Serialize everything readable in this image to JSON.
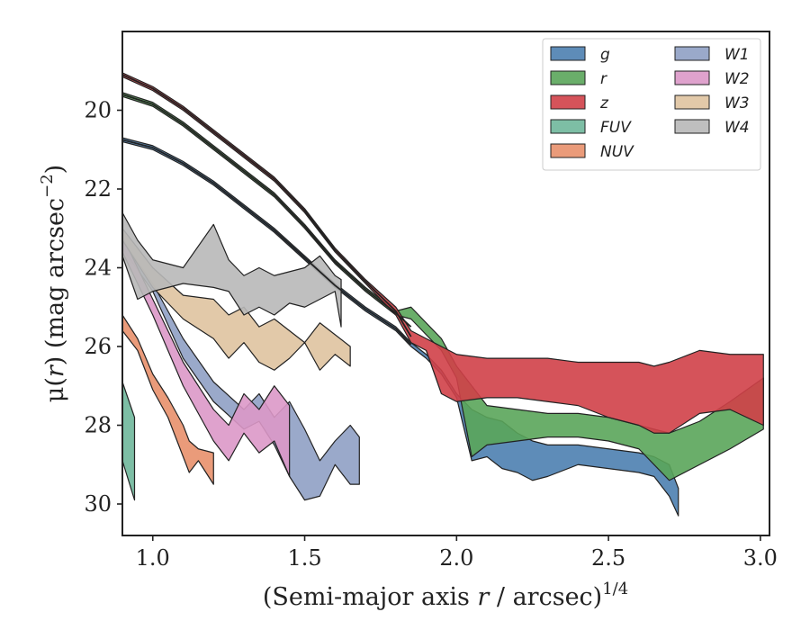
{
  "chart_data": {
    "type": "area",
    "xlabel_main": "(Semi-major axis ",
    "xlabel_var": "r",
    "xlabel_rest": " / arcsec)",
    "xlabel_sup": "1/4",
    "ylabel_main": "μ(",
    "ylabel_var": "r",
    "ylabel_rest": ") (mag arcsec",
    "ylabel_sup": "−2",
    "ylabel_close": ")",
    "xlim": [
      0.9,
      3.03
    ],
    "ylim": [
      30.8,
      18.0
    ],
    "xticks": [
      1.0,
      1.5,
      2.0,
      2.5,
      3.0
    ],
    "xtick_labels": [
      "1.0",
      "1.5",
      "2.0",
      "2.5",
      "3.0"
    ],
    "yticks": [
      20,
      22,
      24,
      26,
      28,
      30
    ],
    "ytick_labels": [
      "20",
      "22",
      "24",
      "26",
      "28",
      "30"
    ],
    "legend_position": "top-right",
    "legend_columns": 2,
    "series": [
      {
        "name": "g",
        "color": "#4c7fb0",
        "x": [
          0.9,
          1.0,
          1.1,
          1.2,
          1.3,
          1.4,
          1.5,
          1.6,
          1.7,
          1.8,
          1.85,
          1.9,
          1.95,
          2.0,
          2.05,
          2.1,
          2.15,
          2.2,
          2.25,
          2.3,
          2.4,
          2.5,
          2.6,
          2.65,
          2.7,
          2.73
        ],
        "y_upper": [
          20.7,
          20.9,
          21.3,
          21.8,
          22.4,
          23.0,
          23.7,
          24.4,
          25.0,
          25.5,
          25.9,
          26.2,
          26.6,
          27.2,
          27.6,
          27.8,
          27.9,
          28.2,
          28.4,
          28.5,
          28.5,
          28.6,
          28.7,
          28.8,
          29.0,
          29.6
        ],
        "y_lower": [
          20.8,
          21.0,
          21.4,
          21.9,
          22.5,
          23.1,
          23.8,
          24.5,
          25.1,
          25.6,
          26.0,
          26.3,
          26.7,
          27.3,
          28.9,
          28.8,
          29.1,
          29.2,
          29.4,
          29.3,
          29.0,
          29.1,
          29.2,
          29.3,
          29.8,
          30.3
        ]
      },
      {
        "name": "r",
        "color": "#5aa55a",
        "x": [
          0.9,
          1.0,
          1.1,
          1.2,
          1.3,
          1.4,
          1.5,
          1.6,
          1.7,
          1.8,
          1.85,
          1.9,
          1.95,
          2.0,
          2.05,
          2.1,
          2.2,
          2.3,
          2.4,
          2.5,
          2.6,
          2.7,
          2.8,
          2.9,
          3.01
        ],
        "y_upper": [
          19.55,
          19.8,
          20.3,
          20.9,
          21.5,
          22.1,
          22.9,
          23.8,
          24.5,
          25.1,
          25.0,
          25.4,
          25.8,
          26.5,
          27.0,
          27.5,
          27.6,
          27.7,
          27.7,
          27.8,
          28.0,
          28.2,
          27.9,
          27.4,
          26.8
        ],
        "y_lower": [
          19.65,
          19.9,
          20.4,
          21.0,
          21.6,
          22.2,
          23.0,
          23.9,
          24.6,
          25.2,
          25.3,
          25.7,
          26.1,
          26.8,
          28.8,
          28.5,
          28.4,
          28.3,
          28.3,
          28.4,
          28.6,
          29.4,
          29.0,
          28.6,
          28.1
        ]
      },
      {
        "name": "z",
        "color": "#d04048",
        "x": [
          0.9,
          1.0,
          1.1,
          1.2,
          1.3,
          1.4,
          1.5,
          1.6,
          1.7,
          1.8,
          1.85,
          1.9,
          1.95,
          2.0,
          2.1,
          2.2,
          2.3,
          2.4,
          2.5,
          2.6,
          2.65,
          2.7,
          2.8,
          2.9,
          3.01
        ],
        "y_upper": [
          19.05,
          19.4,
          19.9,
          20.5,
          21.1,
          21.7,
          22.5,
          23.5,
          24.3,
          25.0,
          25.6,
          25.8,
          26.0,
          26.2,
          26.3,
          26.3,
          26.3,
          26.4,
          26.4,
          26.4,
          26.5,
          26.4,
          26.1,
          26.2,
          26.2
        ],
        "y_lower": [
          19.15,
          19.5,
          20.0,
          20.6,
          21.2,
          21.8,
          22.6,
          23.6,
          24.4,
          25.2,
          25.9,
          26.1,
          27.2,
          27.4,
          27.3,
          27.3,
          27.4,
          27.5,
          27.8,
          28.0,
          28.2,
          28.2,
          27.7,
          27.6,
          28.0
        ]
      },
      {
        "name": "FUV",
        "color": "#6fb79b",
        "x": [
          0.9,
          0.94
        ],
        "y_upper": [
          26.9,
          27.8
        ],
        "y_lower": [
          28.9,
          29.9
        ]
      },
      {
        "name": "NUV",
        "color": "#e8906c",
        "x": [
          0.9,
          0.95,
          1.0,
          1.05,
          1.1,
          1.12,
          1.15,
          1.2
        ],
        "y_upper": [
          25.2,
          25.8,
          26.7,
          27.3,
          28.0,
          28.4,
          28.6,
          28.7
        ],
        "y_lower": [
          25.6,
          26.1,
          27.1,
          27.8,
          28.8,
          29.2,
          28.9,
          29.5
        ]
      },
      {
        "name": "W1",
        "color": "#8fa0c4",
        "x": [
          0.9,
          1.0,
          1.1,
          1.2,
          1.3,
          1.35,
          1.4,
          1.45,
          1.5,
          1.55,
          1.6,
          1.65,
          1.68
        ],
        "y_upper": [
          23.3,
          24.4,
          25.8,
          26.9,
          27.6,
          27.2,
          27.8,
          27.4,
          28.1,
          28.9,
          28.4,
          28.0,
          28.3
        ],
        "y_lower": [
          23.5,
          24.6,
          26.3,
          27.4,
          28.1,
          27.9,
          28.5,
          29.3,
          29.9,
          29.8,
          29.0,
          29.5,
          29.5
        ]
      },
      {
        "name": "W2",
        "color": "#dc98c8",
        "x": [
          0.9,
          1.0,
          1.1,
          1.2,
          1.25,
          1.3,
          1.35,
          1.4,
          1.45
        ],
        "y_upper": [
          23.2,
          24.8,
          26.4,
          27.6,
          28.0,
          27.2,
          27.6,
          27.0,
          27.5
        ],
        "y_lower": [
          23.6,
          25.2,
          27.0,
          28.4,
          28.9,
          28.2,
          28.7,
          28.4,
          29.3
        ]
      },
      {
        "name": "W3",
        "color": "#dfc3a0",
        "x": [
          0.9,
          1.0,
          1.1,
          1.2,
          1.25,
          1.3,
          1.35,
          1.4,
          1.45,
          1.5,
          1.55,
          1.6,
          1.65
        ],
        "y_upper": [
          23.0,
          24.0,
          24.7,
          24.8,
          25.2,
          25.0,
          25.5,
          25.3,
          25.6,
          25.9,
          25.4,
          25.7,
          26.0
        ],
        "y_lower": [
          23.3,
          24.5,
          25.3,
          25.8,
          26.3,
          25.9,
          26.4,
          26.6,
          26.3,
          25.9,
          26.6,
          26.2,
          26.5
        ]
      },
      {
        "name": "W4",
        "color": "#b8b8b8",
        "x": [
          0.9,
          0.95,
          1.0,
          1.1,
          1.2,
          1.25,
          1.3,
          1.35,
          1.4,
          1.45,
          1.5,
          1.55,
          1.6,
          1.62
        ],
        "y_upper": [
          22.6,
          23.3,
          23.8,
          24.0,
          22.9,
          23.8,
          24.2,
          24.0,
          24.2,
          24.1,
          24.0,
          23.7,
          24.2,
          24.3
        ],
        "y_lower": [
          23.7,
          24.8,
          24.6,
          24.4,
          24.5,
          24.6,
          25.2,
          25.0,
          25.2,
          24.9,
          25.0,
          24.8,
          24.6,
          25.5
        ]
      }
    ],
    "lines": [
      {
        "name": "",
        "x": [
          0.9,
          1.0,
          1.1,
          1.2,
          1.3,
          1.4,
          1.5,
          1.6,
          1.7,
          1.8,
          1.85
        ],
        "y": [
          20.75,
          20.95,
          21.35,
          21.85,
          22.45,
          23.05,
          23.75,
          24.45,
          25.05,
          25.55,
          25.95
        ]
      },
      {
        "name": "",
        "x": [
          0.9,
          1.0,
          1.1,
          1.2,
          1.3,
          1.4,
          1.5,
          1.6,
          1.7,
          1.8,
          1.85
        ],
        "y": [
          19.6,
          19.85,
          20.35,
          20.95,
          21.55,
          22.15,
          22.95,
          23.85,
          24.55,
          25.15,
          25.5
        ]
      },
      {
        "name": "",
        "x": [
          0.9,
          1.0,
          1.1,
          1.2,
          1.3,
          1.4,
          1.5,
          1.6,
          1.7,
          1.8,
          1.85
        ],
        "y": [
          19.1,
          19.45,
          19.95,
          20.55,
          21.15,
          21.75,
          22.55,
          23.55,
          24.35,
          25.1,
          25.75
        ]
      }
    ]
  }
}
